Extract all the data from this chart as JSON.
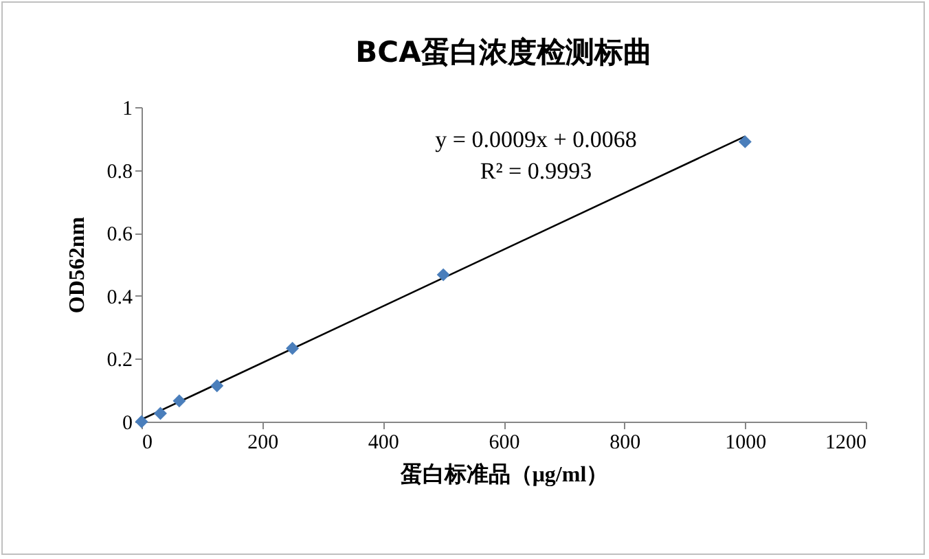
{
  "chart_data": {
    "type": "scatter",
    "title": "BCA蛋白浓度检测标曲",
    "xlabel": "蛋白标准品（μg/ml）",
    "ylabel": "OD562nm",
    "series": [
      {
        "type": "scatter",
        "color": "#4a7ebb",
        "x": [
          0,
          31.25,
          62.5,
          125,
          250,
          500,
          1000
        ],
        "values": [
          0,
          0.026,
          0.066,
          0.114,
          0.233,
          0.467,
          0.89
        ]
      },
      {
        "type": "line",
        "color": "#000000",
        "marker": "none",
        "x": [
          0,
          1000
        ],
        "values": [
          0.007,
          0.907
        ]
      }
    ],
    "marker": "diamond",
    "xlim": [
      0,
      1200
    ],
    "xticks": [
      0,
      200,
      400,
      600,
      800,
      1000,
      1200
    ],
    "ylim": [
      0,
      1
    ],
    "yticks": [
      0,
      0.2,
      0.4,
      0.6,
      0.8,
      1
    ],
    "grid": false,
    "annotations": [
      "y = 0.0009x + 0.0068",
      "R² = 0.9993"
    ]
  }
}
